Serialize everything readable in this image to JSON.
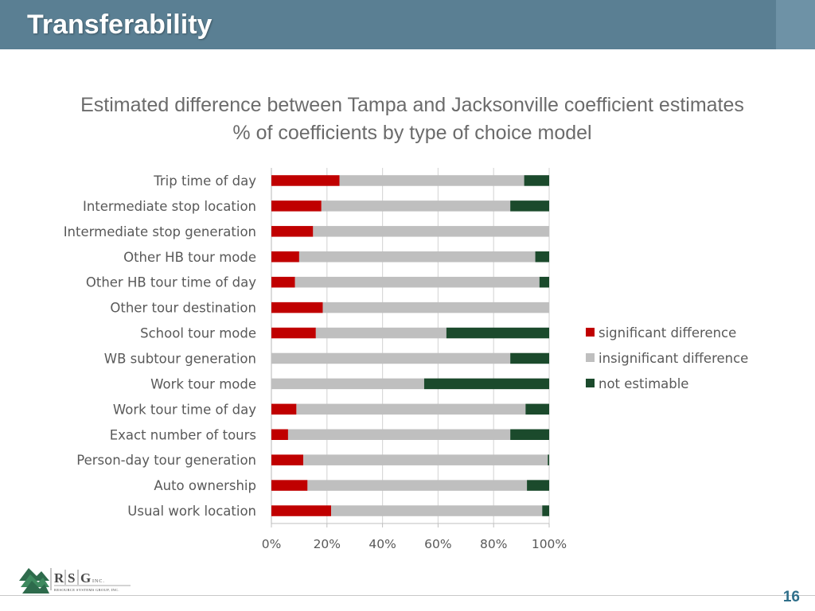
{
  "slide": {
    "title": "Transferability",
    "page_number": "16"
  },
  "logo": {
    "letters": [
      "R",
      "S",
      "G"
    ],
    "suffix": "INC.",
    "company": "RESOURCE SYSTEMS GROUP, INC."
  },
  "colors": {
    "header": "#5a7f93",
    "significant": "#c00000",
    "insignificant": "#bfbfbf",
    "not_estimable": "#1b4a2c"
  },
  "chart_data": {
    "type": "bar",
    "orientation": "horizontal",
    "stacked": true,
    "title": "Estimated difference between Tampa and Jacksonville coefficient estimates",
    "subtitle": "% of coefficients by type of choice model",
    "categories": [
      "Trip time of day",
      "Intermediate stop location",
      "Intermediate stop generation",
      "Other HB tour mode",
      "Other HB tour time of day",
      "Other tour destination",
      "School tour mode",
      "WB subtour generation",
      "Work tour mode",
      "Work tour time of day",
      "Exact number of tours",
      "Person-day tour generation",
      "Auto ownership",
      "Usual work location"
    ],
    "series": [
      {
        "name": "significant difference",
        "color": "#c00000",
        "values": [
          24.5,
          18,
          15,
          10,
          8.5,
          18.5,
          16,
          0,
          0,
          9,
          6,
          11.5,
          13,
          21.5
        ]
      },
      {
        "name": "insignificant difference",
        "color": "#bfbfbf",
        "values": [
          66.5,
          68,
          85,
          85,
          88,
          81.5,
          47,
          86,
          55,
          82.5,
          80,
          88,
          79,
          76
        ]
      },
      {
        "name": "not estimable",
        "color": "#1b4a2c",
        "values": [
          9,
          14,
          0,
          5,
          3.5,
          0,
          37,
          14,
          45,
          8.5,
          14,
          0.5,
          8,
          2.5
        ]
      }
    ],
    "xaxis": {
      "ticks": [
        "0%",
        "20%",
        "40%",
        "60%",
        "80%",
        "100%"
      ],
      "range": [
        0,
        100
      ]
    },
    "legend_position": "right",
    "grid": "vertical"
  }
}
